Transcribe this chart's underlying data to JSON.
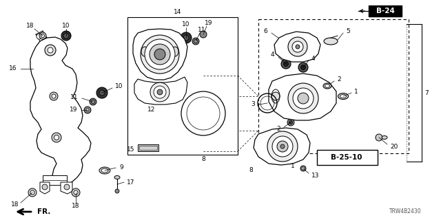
{
  "bg_color": "#ffffff",
  "label_b24": "B-24",
  "label_b2510": "B-25-10",
  "label_fr": "FR.",
  "label_trw": "TRW4B2430",
  "fig_w": 6.4,
  "fig_h": 3.2,
  "dpi": 100
}
